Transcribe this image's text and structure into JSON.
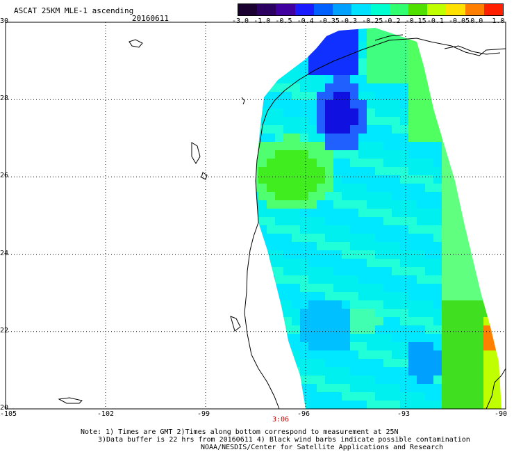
{
  "title": "ASCAT 25KM MLE-1 ascending",
  "date": "20160611",
  "legend": {
    "labels": [
      "-3.0",
      "-1.0",
      "-0.5",
      "-0.4",
      "-0.35",
      "-0.3",
      "-0.25",
      "-0.2",
      "-0.15",
      "-0.1",
      "-0.05",
      "0.0",
      "1.0"
    ],
    "colors": [
      "#2a0035",
      "#4b0082",
      "#3a00c8",
      "#0020ff",
      "#0070ff",
      "#00b0ff",
      "#00e8ff",
      "#40ff80",
      "#00dd00",
      "#a0ff00",
      "#ffff00",
      "#ff8000",
      "#ff2000"
    ]
  },
  "map": {
    "lat_ticks": [
      "30",
      "28",
      "26",
      "24",
      "22",
      "20"
    ],
    "lon_ticks": [
      "-105",
      "-102",
      "-99",
      "-96",
      "-93",
      "-90"
    ],
    "lat_range": [
      20,
      30
    ],
    "lon_range": [
      -105,
      -90
    ],
    "grid": "dotted",
    "time_label": "3:06"
  },
  "notes": [
    "Note: 1) Times are GMT 2)Times along bottom correspond to measurement at 25N",
    "3)Data buffer is 22 hrs from 20160611 4) Black wind barbs indicate possible contamination",
    "NOAA/NESDIS/Center for Satellite Applications and Research"
  ]
}
